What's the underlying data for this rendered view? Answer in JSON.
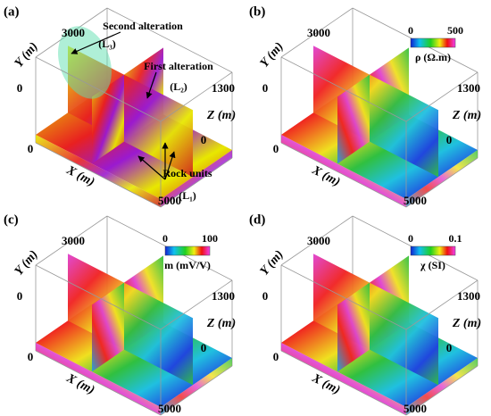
{
  "panels": [
    {
      "label": "(a)",
      "y_axis": "Y (m)",
      "x_axis": "X (m)",
      "z_axis": "Z (m)",
      "y_ticks": [
        "3000",
        "0"
      ],
      "x_ticks": [
        "0",
        "5000"
      ],
      "z_ticks": [
        "1300",
        "0"
      ],
      "annotations": [
        {
          "text": "Second alteration",
          "sub": "(L₃)"
        },
        {
          "text": "First alteration",
          "sub": "(L₂)"
        },
        {
          "text": "Rock units",
          "sub": "(L₁)"
        }
      ]
    },
    {
      "label": "(b)",
      "y_axis": "Y (m)",
      "x_axis": "X (m)",
      "z_axis": "Z (m)",
      "y_ticks": [
        "3000",
        "0"
      ],
      "x_ticks": [
        "0",
        "5000"
      ],
      "z_ticks": [
        "1300",
        "0"
      ],
      "colorbar": {
        "min": "0",
        "max": "500",
        "label": "ρ (Ω.m)"
      }
    },
    {
      "label": "(c)",
      "y_axis": "Y (m)",
      "x_axis": "X (m)",
      "z_axis": "Z (m)",
      "y_ticks": [
        "3000",
        "0"
      ],
      "x_ticks": [
        "0",
        "5000"
      ],
      "z_ticks": [
        "1300",
        "0"
      ],
      "colorbar": {
        "min": "0",
        "max": "100",
        "label": "m (mV/V)"
      }
    },
    {
      "label": "(d)",
      "y_axis": "Y (m)",
      "x_axis": "X (m)",
      "z_axis": "Z (m)",
      "y_ticks": [
        "3000",
        "0"
      ],
      "x_ticks": [
        "0",
        "5000"
      ],
      "z_ticks": [
        "1300",
        "0"
      ],
      "colorbar": {
        "min": "0",
        "max": "0.1",
        "label": "χ (SI)"
      }
    }
  ]
}
